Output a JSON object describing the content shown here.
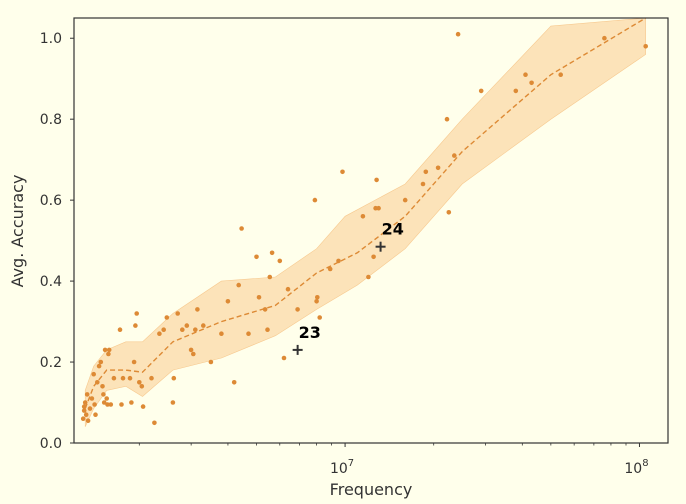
{
  "chart_data": {
    "type": "scatter",
    "title": "",
    "xlabel": "Frequency",
    "ylabel": "Avg. Accuracy",
    "xscale": "log",
    "xlim": [
      1200000,
      125000000
    ],
    "ylim": [
      0,
      1.05
    ],
    "x_ticks": [
      {
        "value": 10000000,
        "label": "10^7"
      },
      {
        "value": 100000000,
        "label": "10^8"
      }
    ],
    "y_ticks": [
      {
        "value": 0.0,
        "label": "0.0"
      },
      {
        "value": 0.2,
        "label": "0.2"
      },
      {
        "value": 0.4,
        "label": "0.4"
      },
      {
        "value": 0.6,
        "label": "0.6"
      },
      {
        "value": 0.8,
        "label": "0.8"
      },
      {
        "value": 1.0,
        "label": "1.0"
      }
    ],
    "grid": false,
    "colors": {
      "points": "#dd8a35",
      "trend": "#dd8a35",
      "band": "#fbd9a8",
      "background": "#ffffeb",
      "markers": "#333333"
    },
    "points": [
      [
        1290000,
        0.06
      ],
      [
        1300000,
        0.08
      ],
      [
        1300000,
        0.09
      ],
      [
        1310000,
        0.1
      ],
      [
        1320000,
        0.07
      ],
      [
        1330000,
        0.12
      ],
      [
        1340000,
        0.055
      ],
      [
        1360000,
        0.085
      ],
      [
        1380000,
        0.11
      ],
      [
        1400000,
        0.17
      ],
      [
        1410000,
        0.095
      ],
      [
        1420000,
        0.07
      ],
      [
        1440000,
        0.15
      ],
      [
        1460000,
        0.19
      ],
      [
        1480000,
        0.2
      ],
      [
        1500000,
        0.14
      ],
      [
        1510000,
        0.12
      ],
      [
        1520000,
        0.1
      ],
      [
        1530000,
        0.23
      ],
      [
        1550000,
        0.11
      ],
      [
        1560000,
        0.095
      ],
      [
        1570000,
        0.22
      ],
      [
        1580000,
        0.23
      ],
      [
        1600000,
        0.095
      ],
      [
        1640000,
        0.16
      ],
      [
        1720000,
        0.28
      ],
      [
        1740000,
        0.095
      ],
      [
        1760000,
        0.16
      ],
      [
        1860000,
        0.16
      ],
      [
        1880000,
        0.1
      ],
      [
        1920000,
        0.2
      ],
      [
        1940000,
        0.29
      ],
      [
        1960000,
        0.32
      ],
      [
        2000000,
        0.15
      ],
      [
        2040000,
        0.14
      ],
      [
        2060000,
        0.09
      ],
      [
        2200000,
        0.16
      ],
      [
        2250000,
        0.05
      ],
      [
        2340000,
        0.27
      ],
      [
        2420000,
        0.28
      ],
      [
        2480000,
        0.31
      ],
      [
        2600000,
        0.1
      ],
      [
        2620000,
        0.16
      ],
      [
        2700000,
        0.32
      ],
      [
        2800000,
        0.28
      ],
      [
        2900000,
        0.29
      ],
      [
        3000000,
        0.23
      ],
      [
        3050000,
        0.22
      ],
      [
        3100000,
        0.28
      ],
      [
        3150000,
        0.33
      ],
      [
        3300000,
        0.29
      ],
      [
        3500000,
        0.2
      ],
      [
        3800000,
        0.27
      ],
      [
        4000000,
        0.35
      ],
      [
        4200000,
        0.15
      ],
      [
        4350000,
        0.39
      ],
      [
        4450000,
        0.53
      ],
      [
        4700000,
        0.27
      ],
      [
        5000000,
        0.46
      ],
      [
        5100000,
        0.36
      ],
      [
        5350000,
        0.33
      ],
      [
        5450000,
        0.28
      ],
      [
        5550000,
        0.41
      ],
      [
        5650000,
        0.47
      ],
      [
        6000000,
        0.45
      ],
      [
        6200000,
        0.21
      ],
      [
        6400000,
        0.38
      ],
      [
        6900000,
        0.33
      ],
      [
        7900000,
        0.6
      ],
      [
        8000000,
        0.35
      ],
      [
        8050000,
        0.36
      ],
      [
        8200000,
        0.31
      ],
      [
        8900000,
        0.43
      ],
      [
        9500000,
        0.45
      ],
      [
        9800000,
        0.67
      ],
      [
        11500000,
        0.56
      ],
      [
        12000000,
        0.41
      ],
      [
        12500000,
        0.46
      ],
      [
        12700000,
        0.58
      ],
      [
        12800000,
        0.65
      ],
      [
        13000000,
        0.58
      ],
      [
        16000000,
        0.6
      ],
      [
        18400000,
        0.64
      ],
      [
        18800000,
        0.67
      ],
      [
        20700000,
        0.68
      ],
      [
        22200000,
        0.8
      ],
      [
        22500000,
        0.57
      ],
      [
        23500000,
        0.71
      ],
      [
        24200000,
        1.01
      ],
      [
        29000000,
        0.87
      ],
      [
        38000000,
        0.87
      ],
      [
        41000000,
        0.91
      ],
      [
        43000000,
        0.89
      ],
      [
        54000000,
        0.91
      ],
      [
        76000000,
        1.0
      ],
      [
        105000000,
        0.98
      ]
    ],
    "trend": [
      [
        1310000,
        0.085
      ],
      [
        1400000,
        0.14
      ],
      [
        1550000,
        0.18
      ],
      [
        1800000,
        0.18
      ],
      [
        2050000,
        0.175
      ],
      [
        2600000,
        0.25
      ],
      [
        3800000,
        0.3
      ],
      [
        5800000,
        0.34
      ],
      [
        8000000,
        0.42
      ],
      [
        11000000,
        0.47
      ],
      [
        16000000,
        0.56
      ],
      [
        25000000,
        0.72
      ],
      [
        50000000,
        0.91
      ],
      [
        105000000,
        1.05
      ]
    ],
    "band_upper": [
      [
        1310000,
        0.13
      ],
      [
        1400000,
        0.19
      ],
      [
        1550000,
        0.23
      ],
      [
        1800000,
        0.25
      ],
      [
        2050000,
        0.25
      ],
      [
        2600000,
        0.32
      ],
      [
        3800000,
        0.4
      ],
      [
        5800000,
        0.41
      ],
      [
        8000000,
        0.48
      ],
      [
        10000000,
        0.56
      ],
      [
        16000000,
        0.64
      ],
      [
        25000000,
        0.8
      ],
      [
        50000000,
        1.03
      ],
      [
        105000000,
        1.15
      ]
    ],
    "band_lower": [
      [
        1310000,
        0.04
      ],
      [
        1400000,
        0.085
      ],
      [
        1550000,
        0.13
      ],
      [
        1800000,
        0.14
      ],
      [
        2050000,
        0.115
      ],
      [
        2600000,
        0.18
      ],
      [
        3800000,
        0.21
      ],
      [
        5800000,
        0.265
      ],
      [
        8000000,
        0.33
      ],
      [
        11000000,
        0.39
      ],
      [
        16000000,
        0.48
      ],
      [
        25000000,
        0.64
      ],
      [
        50000000,
        0.8
      ],
      [
        105000000,
        0.96
      ]
    ],
    "annotations": [
      {
        "label": "24",
        "x": 13200000,
        "y": 0.485
      },
      {
        "label": "23",
        "x": 6900000,
        "y": 0.23
      }
    ]
  }
}
